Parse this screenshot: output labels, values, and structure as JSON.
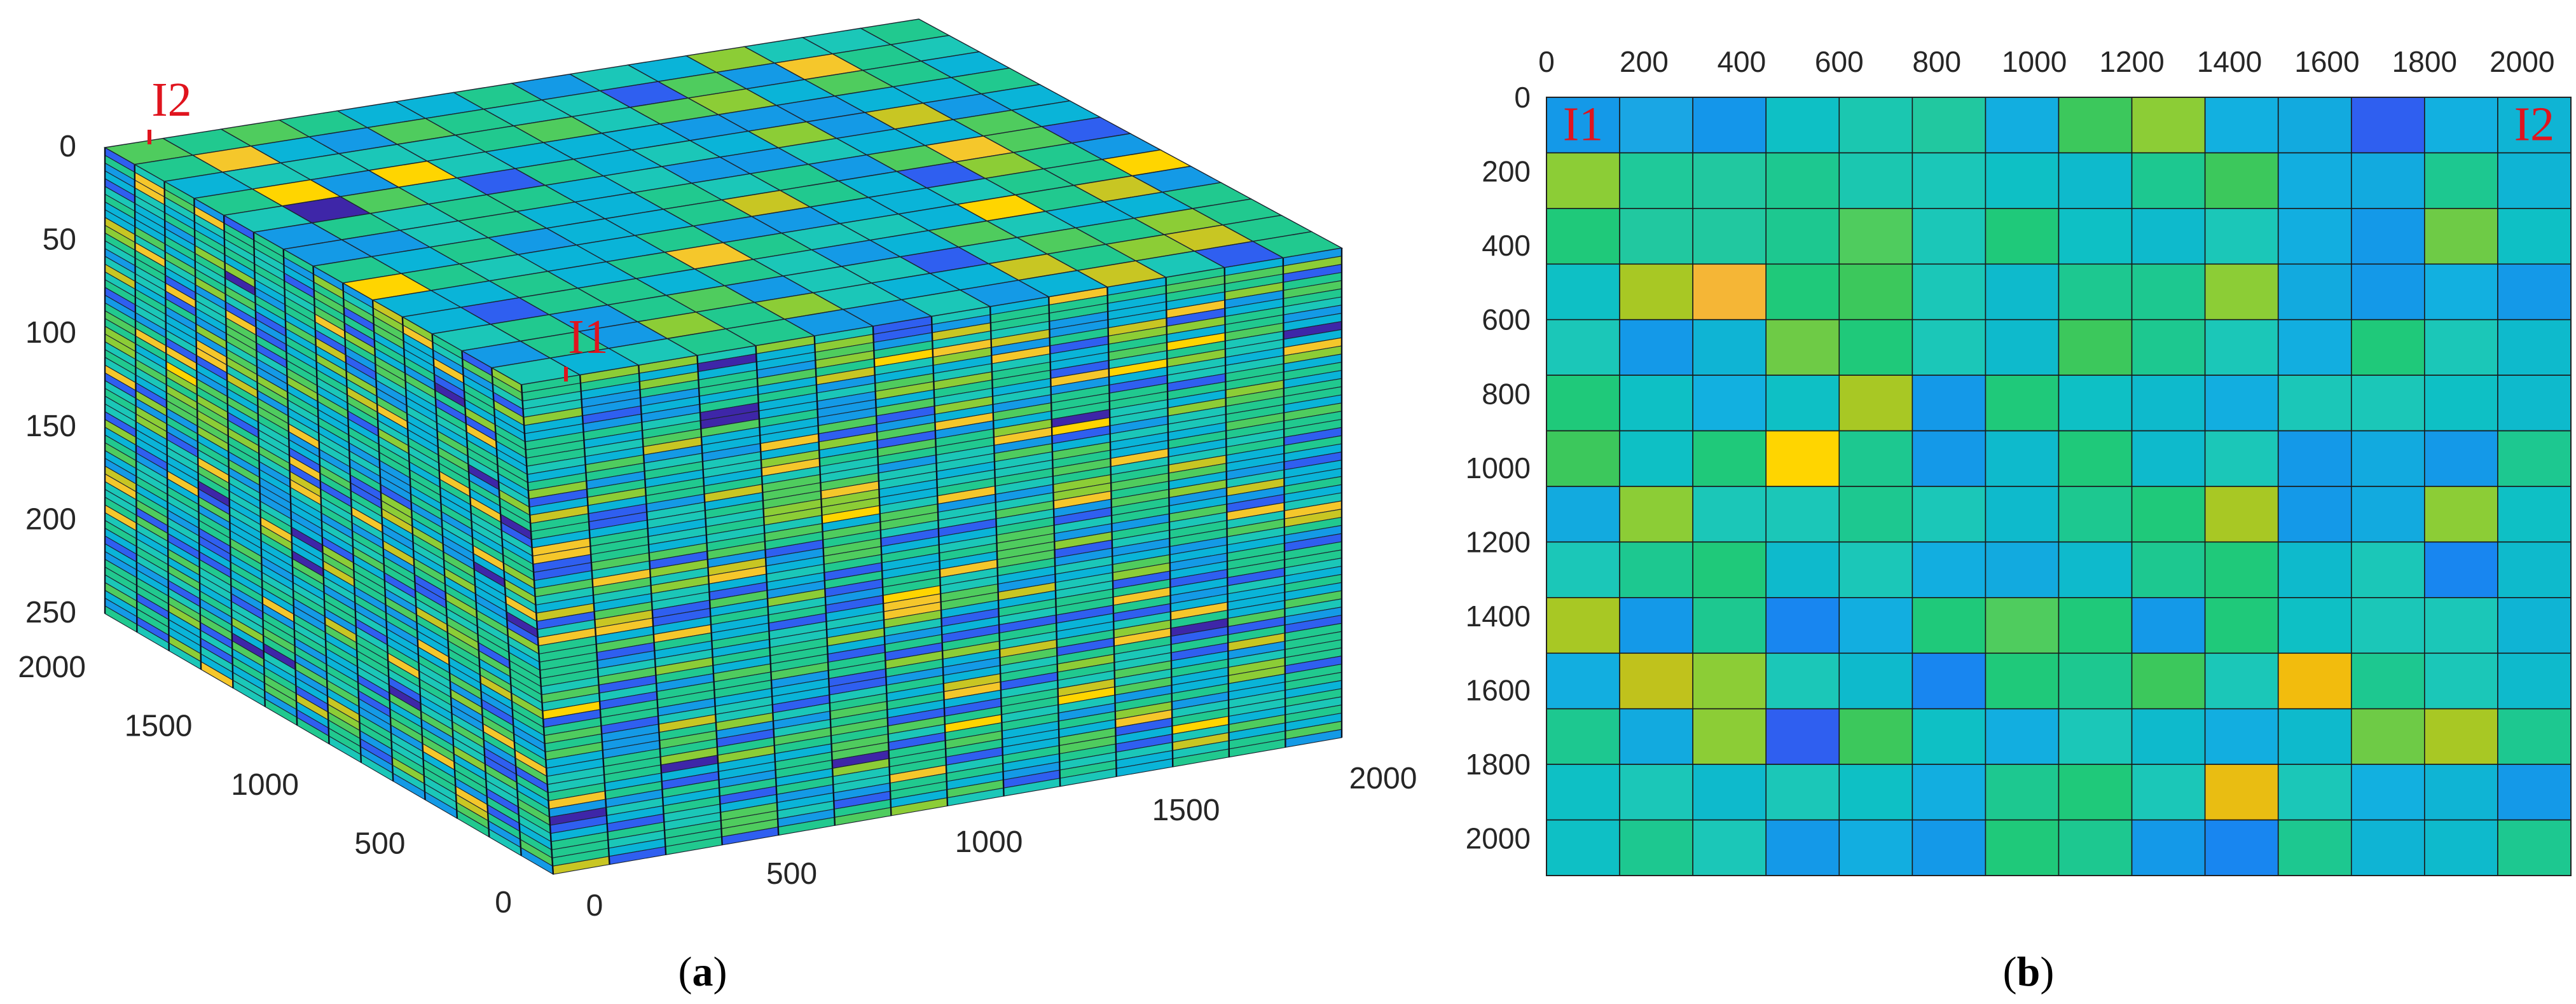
{
  "chart_data": [
    {
      "type": "heatmap",
      "view": "3d-block",
      "caption_letter": "a",
      "caption_open": "(",
      "caption_close": ")",
      "z_ticks": [
        "0",
        "50",
        "100",
        "150",
        "200",
        "250"
      ],
      "y_ticks": [
        "2000",
        "1500",
        "1000",
        "500",
        "0"
      ],
      "x_ticks": [
        "0",
        "500",
        "1000",
        "1500",
        "2000"
      ],
      "grid_columns": 14,
      "grid_rows": 14,
      "layers": 60,
      "wells": [
        {
          "label": "I1"
        },
        {
          "label": "I2"
        }
      ],
      "colormap": [
        "#3e26a8",
        "#2f5ff0",
        "#149ae6",
        "#0ab4d8",
        "#1bc7b8",
        "#21c98f",
        "#4fcc5e",
        "#8ccd36",
        "#c8c623",
        "#f5c72b",
        "#ffd500"
      ]
    },
    {
      "type": "heatmap",
      "view": "plan",
      "caption_letter": "b",
      "caption_open": "(",
      "caption_close": ")",
      "x_ticks": [
        "0",
        "200",
        "400",
        "600",
        "800",
        "1000",
        "1200",
        "1400",
        "1600",
        "1800",
        "2000"
      ],
      "y_ticks": [
        "0",
        "200",
        "400",
        "600",
        "800",
        "1000",
        "1200",
        "1400",
        "1600",
        "1800",
        "2000"
      ],
      "xlim": [
        0,
        2100
      ],
      "ylim": [
        0,
        2100
      ],
      "cell_size": 150,
      "wells": [
        {
          "label": "I1",
          "x": 75,
          "y": 75
        },
        {
          "label": "I2",
          "x": 2025,
          "y": 75
        }
      ],
      "colors": [
        [
          "#1499e8",
          "#1aa6e4",
          "#1496ea",
          "#0ec0c5",
          "#1bc7b0",
          "#21c8a0",
          "#12aee0",
          "#3cc85c",
          "#8ccd36",
          "#12b0e0",
          "#12aadf",
          "#2f5ff0",
          "#12b0e0",
          "#0fb4d4"
        ],
        [
          "#8ccd36",
          "#1fc99a",
          "#21c8a0",
          "#1dc890",
          "#1bc7b0",
          "#1bc7b8",
          "#0ec0c5",
          "#0ebacc",
          "#1dc890",
          "#3cc85c",
          "#12aee0",
          "#12aadf",
          "#1dc890",
          "#0fb4d4"
        ],
        [
          "#1fc97a",
          "#21c8a0",
          "#21c8a0",
          "#1dc890",
          "#4fcc5e",
          "#1bc7b8",
          "#1fc97a",
          "#0ec0c5",
          "#0ebacc",
          "#1bc7b8",
          "#12aee0",
          "#1499e8",
          "#6ecb46",
          "#0ec0c5"
        ],
        [
          "#0ec0c5",
          "#a8c824",
          "#f5b636",
          "#1fc97a",
          "#3cc85c",
          "#1bc7b8",
          "#0ebacc",
          "#1dc890",
          "#1dc890",
          "#8ccd36",
          "#12aadf",
          "#1499e8",
          "#12b0e0",
          "#1499e8"
        ],
        [
          "#1bc7b8",
          "#1499e8",
          "#0fb4d4",
          "#6ecb46",
          "#1fc97a",
          "#1bc7b8",
          "#0ebacc",
          "#3cc85c",
          "#1dc890",
          "#1bc7b8",
          "#12aee0",
          "#1fc97a",
          "#1bc7b8",
          "#0ebacc"
        ],
        [
          "#1fc97a",
          "#0ec0c5",
          "#12b0e0",
          "#0ec0c5",
          "#a8c824",
          "#1499e8",
          "#1fc97a",
          "#0ec0c5",
          "#0ebacc",
          "#12aee0",
          "#1bc7b8",
          "#1bc7b8",
          "#0ec0c5",
          "#0ebacc"
        ],
        [
          "#3cc85c",
          "#0ec0c5",
          "#1fc97a",
          "#ffd500",
          "#1dc890",
          "#1499e8",
          "#0ebacc",
          "#1fc97a",
          "#0ebacc",
          "#1bc7b8",
          "#1499e8",
          "#12aadf",
          "#1499e8",
          "#1dc890"
        ],
        [
          "#12aadf",
          "#8ccd36",
          "#1bc7b8",
          "#1bc7b8",
          "#1dc890",
          "#1bc7b8",
          "#0ebacc",
          "#1dc890",
          "#1fc97a",
          "#a8c824",
          "#1499e8",
          "#12aadf",
          "#8ccd36",
          "#0ec0c5"
        ],
        [
          "#1bc7b8",
          "#1dc890",
          "#1fc97a",
          "#0ebacc",
          "#1bc7b8",
          "#12aee0",
          "#12aadf",
          "#0ebacc",
          "#1dc890",
          "#1fc97a",
          "#0ebacc",
          "#1bc7b8",
          "#1886f0",
          "#0ebacc"
        ],
        [
          "#a8c824",
          "#1499e8",
          "#1dc890",
          "#1886f0",
          "#12aee0",
          "#1fc97a",
          "#4fcc5e",
          "#1fc97a",
          "#1499e8",
          "#1fc97a",
          "#0ec0c5",
          "#1bc7b8",
          "#1bc7b8",
          "#0fb4d4"
        ],
        [
          "#12aee0",
          "#c0c21c",
          "#8ccd36",
          "#1bc7b8",
          "#0ebacc",
          "#1886f0",
          "#1fc97a",
          "#1dc890",
          "#3cc85c",
          "#1bc7b8",
          "#f2bc0d",
          "#1dc890",
          "#1bc7b8",
          "#0ebacc"
        ],
        [
          "#1dc890",
          "#12aadf",
          "#8ccd36",
          "#2f5ff0",
          "#3cc85c",
          "#0ec0c5",
          "#12aee0",
          "#1bc7b8",
          "#0ebacc",
          "#12aee0",
          "#0ebacc",
          "#6ecb46",
          "#a8c824",
          "#1dc890"
        ],
        [
          "#0ec0c5",
          "#1bc7b8",
          "#0ebacc",
          "#1bc7b8",
          "#0ec0c5",
          "#12aee0",
          "#1dc890",
          "#1fc97a",
          "#1bc7b8",
          "#e9bd12",
          "#1bc7b8",
          "#12b0e0",
          "#0fb4d4",
          "#1499e8"
        ],
        [
          "#0ec0c5",
          "#1dc890",
          "#1bc7b8",
          "#1499e8",
          "#12aee0",
          "#1499e8",
          "#1fc97a",
          "#1dc890",
          "#1499e8",
          "#1886f0",
          "#1dc890",
          "#0fb4d4",
          "#0ebacc",
          "#1dc890"
        ]
      ]
    }
  ]
}
